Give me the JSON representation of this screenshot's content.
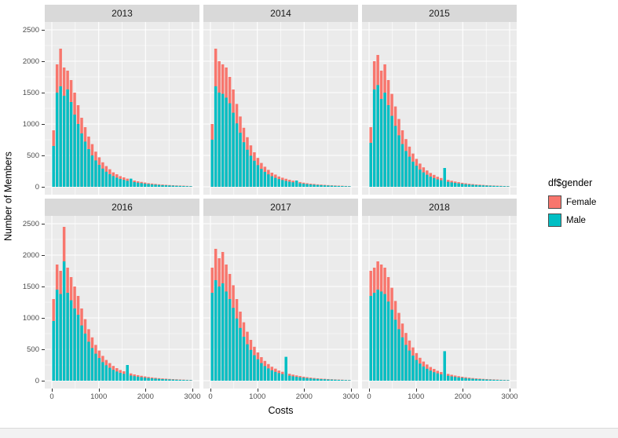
{
  "chart": {
    "ylabel": "Number of Members",
    "xlabel": "Costs",
    "legend_title": "df$gender",
    "legend": [
      {
        "label": "Female",
        "color": "#F8766D"
      },
      {
        "label": "Male",
        "color": "#00BFC4"
      }
    ],
    "x_ticks": [
      0,
      1000,
      2000,
      3000
    ],
    "y_ticks": [
      0,
      500,
      1000,
      1500,
      2000,
      2500
    ],
    "panel_bg": "#EBEBEB",
    "strip_bg": "#D9D9D9",
    "grid_color": "#FFFFFF"
  },
  "chart_data": {
    "type": "bar",
    "subtype": "faceted-histogram",
    "position": "identity",
    "bin_start": 0,
    "bin_width": 75,
    "xlim": [
      0,
      3000
    ],
    "ylim": [
      0,
      2500
    ],
    "xlabel": "Costs",
    "ylabel": "Number of Members",
    "legend_position": "right",
    "grid": true,
    "series_colors": {
      "Female": "#F8766D",
      "Male": "#00BFC4"
    },
    "facets": [
      {
        "label": "2013",
        "female": [
          900,
          1950,
          2200,
          1900,
          1850,
          1700,
          1500,
          1300,
          1100,
          950,
          800,
          680,
          560,
          470,
          390,
          330,
          280,
          230,
          200,
          170,
          150,
          130,
          115,
          100,
          88,
          78,
          68,
          58,
          52,
          46,
          40,
          36,
          32,
          28,
          25,
          22,
          20,
          18,
          15,
          12
        ],
        "male": [
          650,
          1500,
          1600,
          1450,
          1550,
          1350,
          1150,
          1000,
          850,
          720,
          600,
          500,
          420,
          350,
          290,
          240,
          200,
          170,
          145,
          125,
          110,
          95,
          130,
          75,
          65,
          58,
          50,
          44,
          38,
          34,
          30,
          26,
          24,
          21,
          18,
          16,
          14,
          12,
          10,
          9
        ]
      },
      {
        "label": "2014",
        "female": [
          1000,
          2200,
          2000,
          1950,
          1900,
          1750,
          1550,
          1320,
          1120,
          940,
          790,
          660,
          550,
          460,
          380,
          320,
          270,
          225,
          195,
          165,
          145,
          128,
          112,
          98,
          86,
          76,
          66,
          57,
          50,
          45,
          39,
          35,
          31,
          27,
          24,
          21,
          19,
          17,
          14,
          12
        ],
        "male": [
          750,
          1600,
          1500,
          1480,
          1420,
          1330,
          1180,
          1010,
          860,
          710,
          590,
          495,
          415,
          345,
          285,
          238,
          198,
          168,
          142,
          122,
          107,
          93,
          82,
          72,
          100,
          56,
          49,
          43,
          37,
          33,
          29,
          26,
          23,
          20,
          18,
          15,
          13,
          12,
          10,
          9
        ]
      },
      {
        "label": "2015",
        "female": [
          950,
          2000,
          2100,
          1850,
          1950,
          1700,
          1480,
          1280,
          1080,
          900,
          760,
          640,
          530,
          445,
          370,
          310,
          260,
          220,
          190,
          160,
          140,
          125,
          110,
          96,
          84,
          74,
          64,
          56,
          49,
          43,
          38,
          34,
          30,
          26,
          23,
          20,
          18,
          16,
          13,
          11
        ],
        "male": [
          700,
          1550,
          1620,
          1400,
          1500,
          1300,
          1130,
          970,
          820,
          680,
          570,
          480,
          400,
          335,
          275,
          230,
          192,
          162,
          138,
          118,
          103,
          300,
          80,
          70,
          62,
          54,
          47,
          41,
          36,
          32,
          28,
          25,
          22,
          19,
          17,
          15,
          13,
          11,
          10,
          8
        ]
      },
      {
        "label": "2016",
        "female": [
          1300,
          1850,
          1750,
          2450,
          1800,
          1650,
          1500,
          1350,
          1150,
          980,
          820,
          690,
          570,
          480,
          395,
          330,
          280,
          235,
          200,
          170,
          150,
          132,
          116,
          100,
          88,
          78,
          68,
          59,
          52,
          46,
          40,
          36,
          32,
          28,
          25,
          22,
          19,
          17,
          14,
          12
        ],
        "male": [
          950,
          1450,
          1380,
          1900,
          1400,
          1280,
          1150,
          1050,
          880,
          750,
          620,
          520,
          430,
          360,
          295,
          245,
          205,
          172,
          146,
          124,
          108,
          250,
          82,
          72,
          63,
          55,
          48,
          42,
          37,
          33,
          29,
          25,
          22,
          20,
          17,
          15,
          13,
          12,
          10,
          8
        ]
      },
      {
        "label": "2017",
        "female": [
          1800,
          2100,
          1950,
          2050,
          1850,
          1700,
          1520,
          1300,
          1100,
          930,
          780,
          650,
          540,
          450,
          375,
          315,
          265,
          222,
          192,
          162,
          142,
          126,
          110,
          96,
          84,
          74,
          64,
          56,
          49,
          43,
          38,
          33,
          30,
          26,
          23,
          20,
          18,
          16,
          13,
          11
        ],
        "male": [
          1400,
          1600,
          1500,
          1550,
          1420,
          1300,
          1160,
          990,
          840,
          700,
          580,
          490,
          405,
          340,
          280,
          232,
          195,
          165,
          140,
          120,
          105,
          380,
          80,
          70,
          61,
          54,
          47,
          41,
          36,
          32,
          28,
          24,
          22,
          19,
          17,
          15,
          13,
          11,
          10,
          8
        ]
      },
      {
        "label": "2018",
        "female": [
          1750,
          1800,
          1900,
          1850,
          1800,
          1650,
          1480,
          1270,
          1080,
          910,
          760,
          640,
          530,
          440,
          365,
          305,
          258,
          218,
          188,
          158,
          138,
          122,
          108,
          94,
          82,
          72,
          63,
          55,
          48,
          42,
          37,
          33,
          29,
          26,
          23,
          20,
          18,
          15,
          13,
          11
        ],
        "male": [
          1350,
          1400,
          1450,
          1420,
          1380,
          1260,
          1130,
          970,
          820,
          690,
          570,
          480,
          400,
          330,
          272,
          226,
          190,
          160,
          135,
          116,
          101,
          470,
          78,
          68,
          60,
          52,
          46,
          40,
          35,
          31,
          27,
          24,
          21,
          18,
          16,
          14,
          12,
          11,
          9,
          8
        ]
      }
    ]
  }
}
